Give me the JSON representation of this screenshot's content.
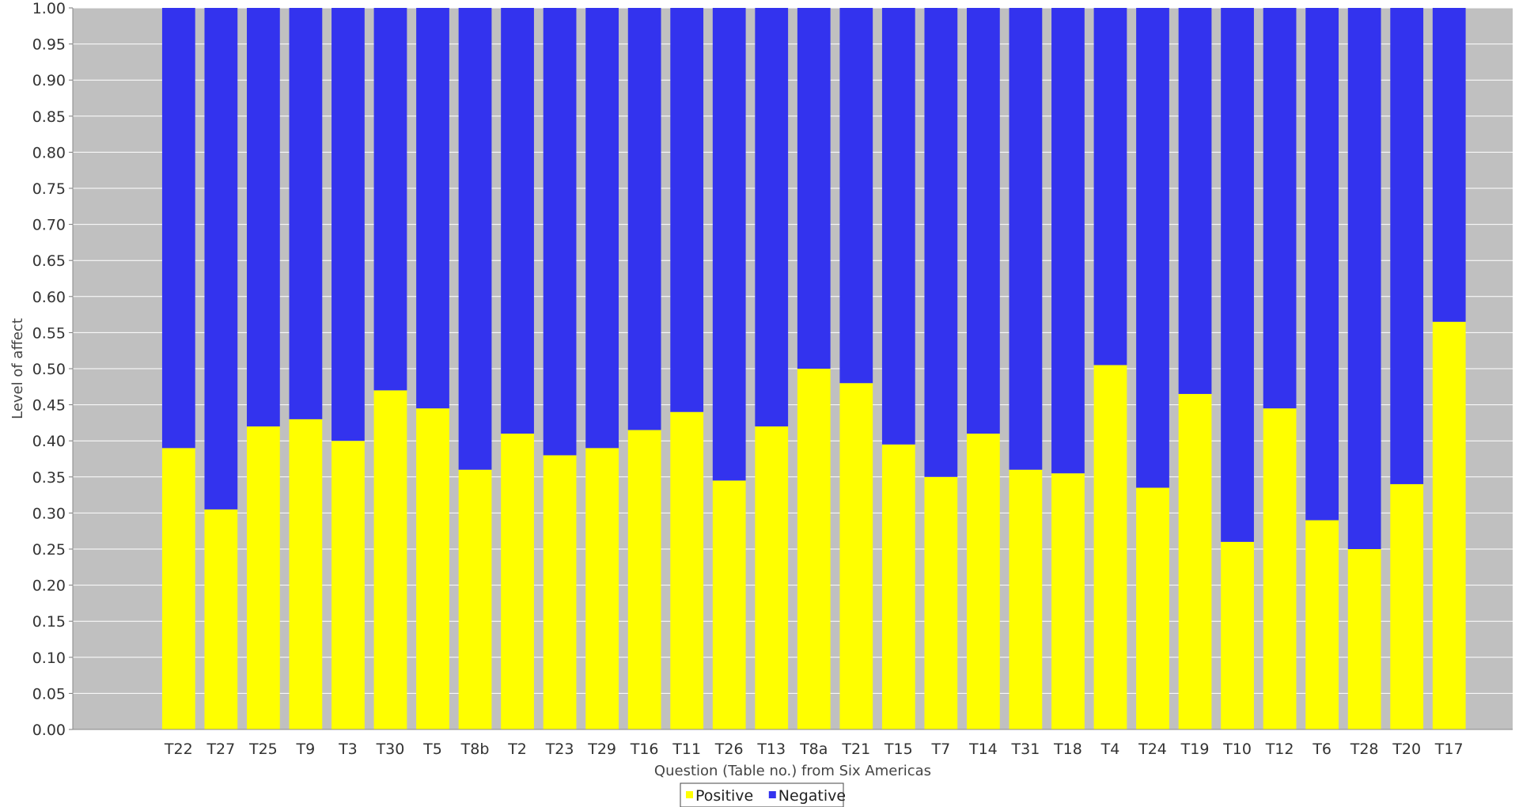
{
  "chart_data": {
    "type": "bar",
    "stacked": true,
    "xlabel": "Question (Table no.) from Six Americas",
    "ylabel": "Level of affect",
    "ylim": [
      0,
      1
    ],
    "yticks": [
      "0.00",
      "0.05",
      "0.10",
      "0.15",
      "0.20",
      "0.25",
      "0.30",
      "0.35",
      "0.40",
      "0.45",
      "0.50",
      "0.55",
      "0.60",
      "0.65",
      "0.70",
      "0.75",
      "0.80",
      "0.85",
      "0.90",
      "0.95",
      "1.00"
    ],
    "grid": true,
    "legend_position": "bottom-center",
    "categories": [
      "",
      "",
      "T22",
      "T27",
      "T25",
      "T9",
      "T3",
      "T30",
      "T5",
      "T8b",
      "T2",
      "T23",
      "T29",
      "T16",
      "T11",
      "T26",
      "T13",
      "T8a",
      "T21",
      "T15",
      "T7",
      "T14",
      "T31",
      "T18",
      "T4",
      "T24",
      "T19",
      "T10",
      "T12",
      "T6",
      "T28",
      "T20",
      "T17",
      ""
    ],
    "series": [
      {
        "name": "Positive",
        "color": "#ffff00",
        "values": [
          0,
          0,
          0.39,
          0.305,
          0.42,
          0.43,
          0.4,
          0.47,
          0.445,
          0.36,
          0.41,
          0.38,
          0.39,
          0.415,
          0.44,
          0.345,
          0.42,
          0.5,
          0.48,
          0.395,
          0.35,
          0.41,
          0.36,
          0.355,
          0.505,
          0.335,
          0.465,
          0.26,
          0.445,
          0.29,
          0.25,
          0.34,
          0.565,
          0
        ]
      },
      {
        "name": "Negative",
        "color": "#3333ee",
        "values": [
          0,
          0,
          0.61,
          0.695,
          0.58,
          0.57,
          0.6,
          0.53,
          0.555,
          0.64,
          0.59,
          0.62,
          0.61,
          0.585,
          0.56,
          0.655,
          0.58,
          0.5,
          0.52,
          0.605,
          0.65,
          0.59,
          0.64,
          0.645,
          0.495,
          0.665,
          0.535,
          0.74,
          0.555,
          0.71,
          0.75,
          0.66,
          0.435,
          0
        ]
      }
    ],
    "plot_background": "#c0c0c0"
  }
}
